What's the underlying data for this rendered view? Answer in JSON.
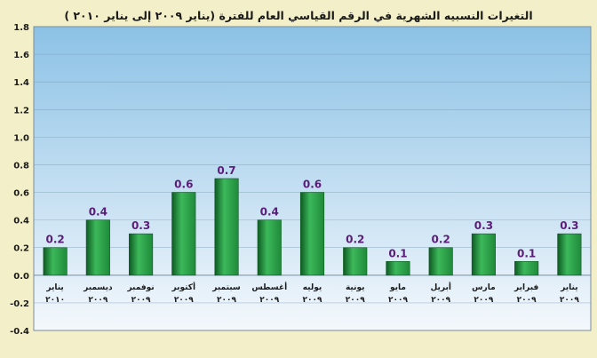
{
  "chart_data": {
    "type": "bar",
    "title": "التغيرات النسبيه الشهرية في الرقم القياسي العام للفترة (يناير ٢٠٠٩ إلى يناير ٢٠١٠ )",
    "categories": [
      {
        "month": "يناير",
        "year": "٢٠٠٩"
      },
      {
        "month": "فبراير",
        "year": "٢٠٠٩"
      },
      {
        "month": "مارس",
        "year": "٢٠٠٩"
      },
      {
        "month": "أبريل",
        "year": "٢٠٠٩"
      },
      {
        "month": "مايو",
        "year": "٢٠٠٩"
      },
      {
        "month": "يونية",
        "year": "٢٠٠٩"
      },
      {
        "month": "يوليه",
        "year": "٢٠٠٩"
      },
      {
        "month": "أغسطس",
        "year": "٢٠٠٩"
      },
      {
        "month": "سبتمبر",
        "year": "٢٠٠٩"
      },
      {
        "month": "أكتوبر",
        "year": "٢٠٠٩"
      },
      {
        "month": "نوفمبر",
        "year": "٢٠٠٩"
      },
      {
        "month": "ديسمبر",
        "year": "٢٠٠٩"
      },
      {
        "month": "يناير",
        "year": "٢٠١٠"
      }
    ],
    "values": [
      0.3,
      0.1,
      0.3,
      0.2,
      0.1,
      0.2,
      0.6,
      0.4,
      0.7,
      0.6,
      0.3,
      0.4,
      0.2
    ],
    "value_labels": [
      "0.3",
      "0.1",
      "0.3",
      "0.2",
      "0.1",
      "0.2",
      "0.6",
      "0.4",
      "0.7",
      "0.6",
      "0.3",
      "0.4",
      "0.2"
    ],
    "ylim": [
      -0.4,
      1.8
    ],
    "yticks": [
      -0.4,
      -0.2,
      0.0,
      0.2,
      0.4,
      0.6,
      0.8,
      1.0,
      1.2,
      1.4,
      1.6,
      1.8
    ],
    "ytick_labels": [
      "-0.4",
      "-0.2",
      "0.0",
      "0.2",
      "0.4",
      "0.6",
      "0.8",
      "1.0",
      "1.2",
      "1.4",
      "1.6",
      "1.8"
    ],
    "grid": true,
    "legend": "none",
    "xaxis_direction": "right-to-left",
    "colors": {
      "bar": "#1f8a3a",
      "bar_light": "#3cb85a",
      "bar_dark": "#0e5a22",
      "value_label": "#5b1d78",
      "plot_top": "#8cc2e6",
      "plot_bottom": "#f4f8fc",
      "page_background": "#f3f0c9",
      "title": "#1a1a1a",
      "grid": "#6f8eaa"
    }
  }
}
